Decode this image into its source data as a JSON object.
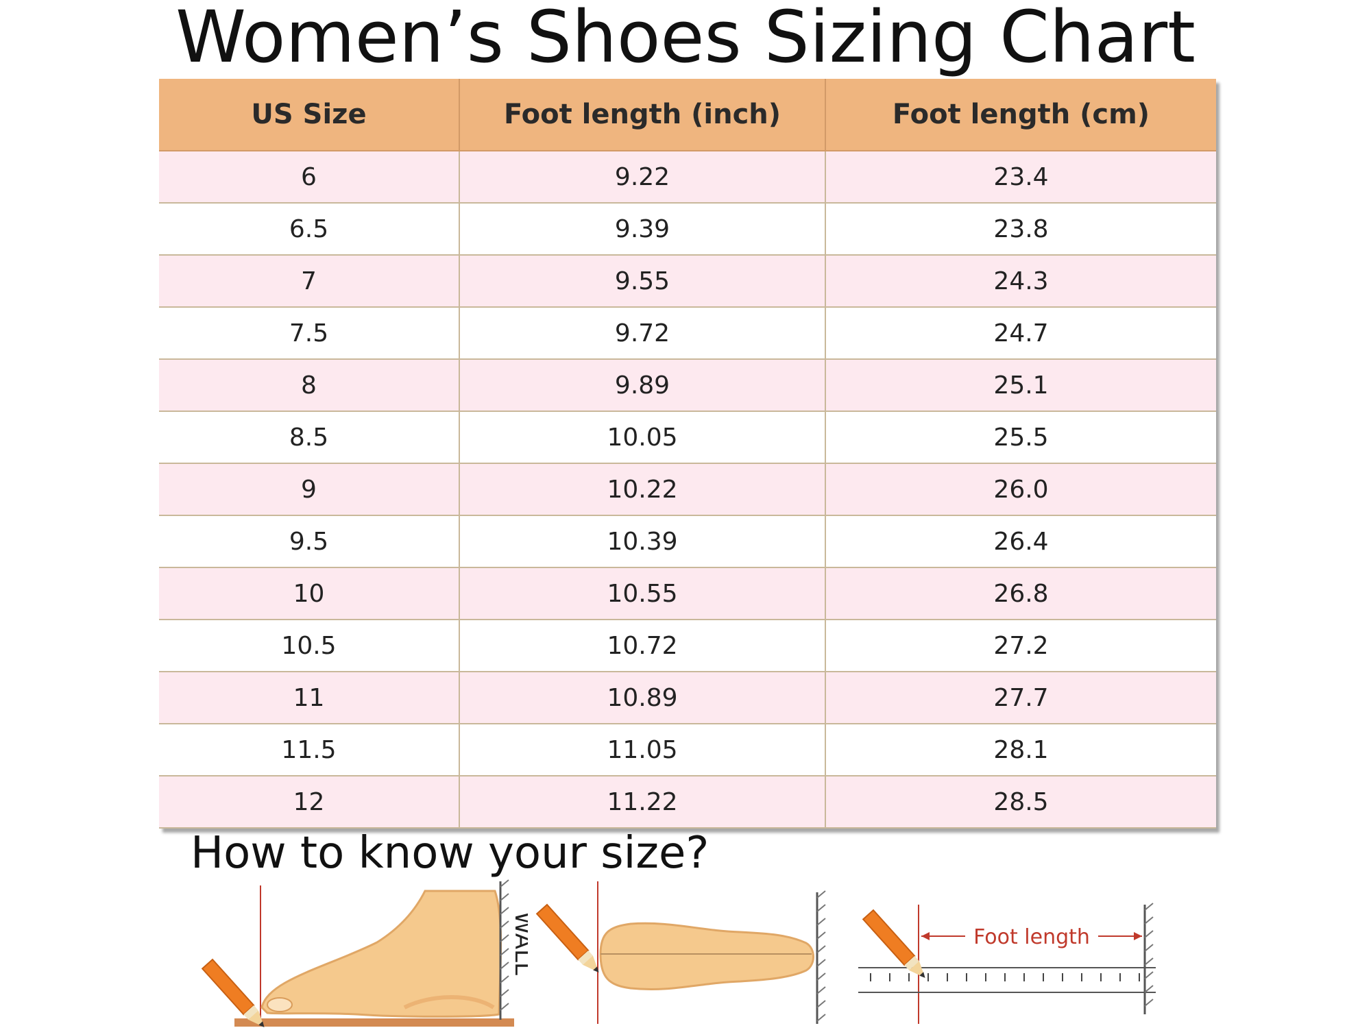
{
  "title": "Women’s Shoes Sizing Chart",
  "table": {
    "headers": [
      "US Size",
      "Foot length (inch)",
      "Foot length (cm)"
    ],
    "rows": [
      [
        "6",
        "9.22",
        "23.4"
      ],
      [
        "6.5",
        "9.39",
        "23.8"
      ],
      [
        "7",
        "9.55",
        "24.3"
      ],
      [
        "7.5",
        "9.72",
        "24.7"
      ],
      [
        "8",
        "9.89",
        "25.1"
      ],
      [
        "8.5",
        "10.05",
        "25.5"
      ],
      [
        "9",
        "10.22",
        "26.0"
      ],
      [
        "9.5",
        "10.39",
        "26.4"
      ],
      [
        "10",
        "10.55",
        "26.8"
      ],
      [
        "10.5",
        "10.72",
        "27.2"
      ],
      [
        "11",
        "10.89",
        "27.7"
      ],
      [
        "11.5",
        "11.05",
        "28.1"
      ],
      [
        "12",
        "11.22",
        "28.5"
      ]
    ]
  },
  "subtitle": "How to know your size?",
  "illustrations": {
    "wall_label": "WALL",
    "foot_length_label": "Foot length"
  },
  "colors": {
    "header_bg": "#efb57f",
    "row_pink": "#fde9ef",
    "row_white": "#ffffff",
    "foot_skin": "#f7c98e",
    "pencil": "#ef7d22"
  }
}
